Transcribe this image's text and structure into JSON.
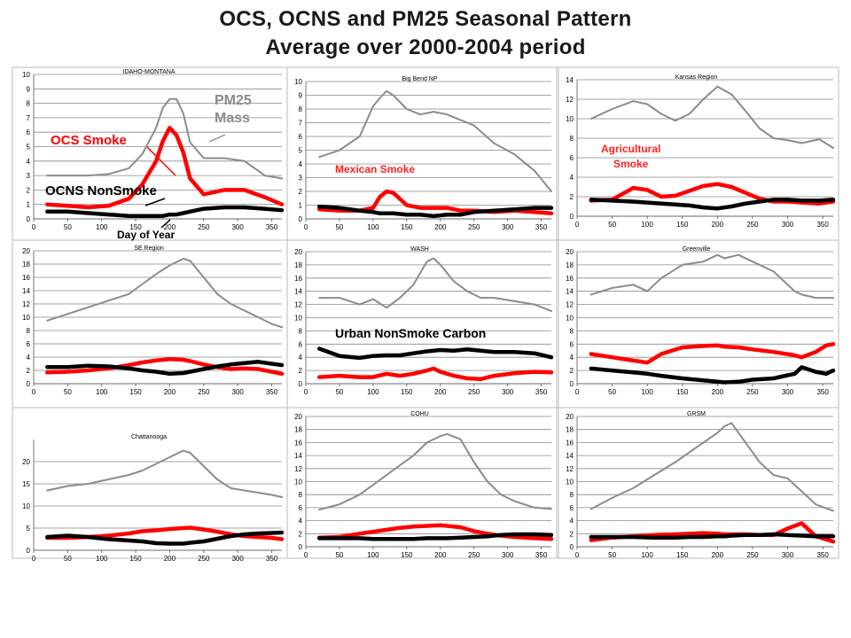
{
  "title_line1": "OCS, OCNS and PM25 Seasonal Pattern",
  "title_line2": "Average over 2000-2004 period",
  "colors": {
    "pm25": "#8c8c8c",
    "ocs": "#ff0000",
    "ocns": "#000000"
  },
  "annotations": {
    "pm25_mass": "PM25\nMass",
    "ocs_smoke": "OCS Smoke",
    "ocns_nonsmoke": "OCNS NonSmoke",
    "day_of_year": "Day of Year",
    "mexican_smoke": "Mexican Smoke",
    "agricultural_smoke": "Agricultural\nSmoke",
    "urban_nonsmoke": "Urban NonSmoke Carbon"
  },
  "chart_data": [
    {
      "type": "line",
      "title": "IDAHO-MONTANA",
      "xlabel": "Day of Year",
      "xlim": [
        0,
        365
      ],
      "ylim": [
        0,
        10
      ],
      "x": [
        20,
        50,
        80,
        110,
        140,
        160,
        180,
        190,
        200,
        210,
        220,
        230,
        250,
        280,
        310,
        340,
        365
      ],
      "series": [
        {
          "name": "PM25 Mass",
          "values": [
            3.0,
            3.0,
            3.0,
            3.1,
            3.5,
            4.5,
            6.3,
            7.7,
            8.3,
            8.3,
            7.3,
            5.3,
            4.2,
            4.2,
            4.0,
            3.0,
            2.8
          ]
        },
        {
          "name": "OCS Smoke",
          "values": [
            1.0,
            0.9,
            0.8,
            0.9,
            1.4,
            2.4,
            4.0,
            5.4,
            6.3,
            5.8,
            4.6,
            2.8,
            1.7,
            2.0,
            2.0,
            1.5,
            1.0
          ]
        },
        {
          "name": "OCNS NonSmoke",
          "values": [
            0.5,
            0.5,
            0.4,
            0.3,
            0.2,
            0.2,
            0.2,
            0.2,
            0.3,
            0.3,
            0.4,
            0.5,
            0.7,
            0.8,
            0.8,
            0.7,
            0.6
          ]
        }
      ]
    },
    {
      "type": "line",
      "title": "Big Bend NP",
      "xlim": [
        0,
        365
      ],
      "ylim": [
        0,
        10
      ],
      "x": [
        20,
        50,
        80,
        100,
        110,
        120,
        130,
        150,
        170,
        190,
        210,
        230,
        250,
        280,
        310,
        340,
        365
      ],
      "series": [
        {
          "name": "",
          "values": [
            4.5,
            5.0,
            6.0,
            8.2,
            8.8,
            9.3,
            9.0,
            8.0,
            7.6,
            7.8,
            7.6,
            7.2,
            6.8,
            5.5,
            4.7,
            3.5,
            2.0
          ]
        },
        {
          "name": "",
          "values": [
            0.7,
            0.6,
            0.6,
            0.8,
            1.6,
            2.0,
            1.9,
            1.0,
            0.8,
            0.8,
            0.8,
            0.6,
            0.6,
            0.5,
            0.6,
            0.5,
            0.4
          ]
        },
        {
          "name": "",
          "values": [
            0.9,
            0.8,
            0.6,
            0.5,
            0.4,
            0.4,
            0.4,
            0.3,
            0.3,
            0.2,
            0.3,
            0.3,
            0.5,
            0.6,
            0.7,
            0.8,
            0.8
          ]
        }
      ]
    },
    {
      "type": "line",
      "title": "Kansas Region",
      "xlim": [
        0,
        365
      ],
      "ylim": [
        0,
        14
      ],
      "x": [
        20,
        50,
        80,
        100,
        120,
        140,
        160,
        180,
        200,
        220,
        240,
        260,
        280,
        300,
        320,
        345,
        365
      ],
      "series": [
        {
          "name": "",
          "values": [
            10.0,
            11.0,
            11.8,
            11.5,
            10.5,
            9.8,
            10.5,
            12.0,
            13.3,
            12.5,
            10.8,
            9.0,
            8.0,
            7.8,
            7.5,
            7.9,
            7.0
          ]
        },
        {
          "name": "",
          "values": [
            1.6,
            1.7,
            2.9,
            2.7,
            2.0,
            2.1,
            2.6,
            3.1,
            3.3,
            3.0,
            2.4,
            1.8,
            1.5,
            1.5,
            1.4,
            1.3,
            1.5
          ]
        },
        {
          "name": "",
          "values": [
            1.7,
            1.6,
            1.5,
            1.4,
            1.3,
            1.2,
            1.1,
            0.9,
            0.8,
            1.0,
            1.3,
            1.5,
            1.7,
            1.7,
            1.6,
            1.6,
            1.7
          ]
        }
      ]
    },
    {
      "type": "line",
      "title": "SE Region",
      "xlim": [
        0,
        365
      ],
      "ylim": [
        0,
        20
      ],
      "x": [
        20,
        50,
        80,
        110,
        140,
        160,
        180,
        200,
        220,
        230,
        250,
        270,
        290,
        310,
        330,
        350,
        365
      ],
      "series": [
        {
          "name": "",
          "values": [
            9.5,
            10.5,
            11.5,
            12.5,
            13.5,
            15.0,
            16.5,
            17.8,
            18.8,
            18.5,
            16.0,
            13.5,
            12.0,
            11.0,
            10.0,
            9.0,
            8.5
          ]
        },
        {
          "name": "",
          "values": [
            1.7,
            1.8,
            2.0,
            2.3,
            2.8,
            3.2,
            3.5,
            3.7,
            3.6,
            3.4,
            2.9,
            2.5,
            2.2,
            2.3,
            2.2,
            1.8,
            1.5
          ]
        },
        {
          "name": "",
          "values": [
            2.5,
            2.5,
            2.7,
            2.6,
            2.3,
            2.0,
            1.8,
            1.5,
            1.6,
            1.8,
            2.2,
            2.6,
            2.9,
            3.1,
            3.3,
            3.0,
            2.8
          ]
        }
      ]
    },
    {
      "type": "line",
      "title": "WASH",
      "xlim": [
        0,
        365
      ],
      "ylim": [
        0,
        20
      ],
      "x": [
        20,
        50,
        80,
        100,
        120,
        140,
        160,
        180,
        190,
        200,
        220,
        240,
        260,
        280,
        310,
        340,
        365
      ],
      "series": [
        {
          "name": "",
          "values": [
            13.0,
            13.0,
            12.0,
            12.8,
            11.5,
            13.0,
            15.0,
            18.5,
            19.0,
            18.0,
            15.5,
            14.0,
            13.0,
            13.0,
            12.5,
            12.0,
            11.0
          ]
        },
        {
          "name": "",
          "values": [
            1.0,
            1.2,
            1.0,
            1.0,
            1.5,
            1.2,
            1.5,
            2.0,
            2.3,
            1.8,
            1.2,
            0.8,
            0.7,
            1.2,
            1.6,
            1.8,
            1.7
          ]
        },
        {
          "name": "",
          "values": [
            5.3,
            4.2,
            3.9,
            4.2,
            4.3,
            4.3,
            4.6,
            4.9,
            5.0,
            5.1,
            5.0,
            5.2,
            5.0,
            4.8,
            4.8,
            4.6,
            4.0
          ]
        }
      ]
    },
    {
      "type": "line",
      "title": "Greenville",
      "xlim": [
        0,
        365
      ],
      "ylim": [
        0,
        20
      ],
      "x": [
        20,
        50,
        80,
        100,
        120,
        150,
        180,
        200,
        210,
        230,
        250,
        280,
        310,
        320,
        340,
        355,
        365
      ],
      "series": [
        {
          "name": "",
          "values": [
            13.5,
            14.5,
            15.0,
            14.0,
            16.0,
            18.0,
            18.5,
            19.5,
            19.0,
            19.5,
            18.5,
            17.0,
            14.0,
            13.5,
            13.0,
            13.0,
            13.0
          ]
        },
        {
          "name": "",
          "values": [
            4.5,
            4.0,
            3.5,
            3.2,
            4.5,
            5.5,
            5.7,
            5.8,
            5.6,
            5.5,
            5.2,
            4.8,
            4.3,
            4.0,
            4.8,
            5.8,
            6.0
          ]
        },
        {
          "name": "",
          "values": [
            2.3,
            2.0,
            1.7,
            1.5,
            1.2,
            0.8,
            0.5,
            0.3,
            0.2,
            0.3,
            0.6,
            0.8,
            1.5,
            2.5,
            1.8,
            1.5,
            2.0
          ]
        }
      ]
    },
    {
      "type": "line",
      "title": "Chattanooga",
      "xlim": [
        0,
        365
      ],
      "ylim": [
        0,
        25
      ],
      "x": [
        20,
        50,
        80,
        110,
        140,
        160,
        180,
        200,
        220,
        230,
        250,
        270,
        290,
        310,
        330,
        350,
        365
      ],
      "series": [
        {
          "name": "",
          "values": [
            13.5,
            14.5,
            15.0,
            16.0,
            17.0,
            18.0,
            19.5,
            21.0,
            22.5,
            22.0,
            19.0,
            16.0,
            14.0,
            13.5,
            13.0,
            12.5,
            12.0
          ]
        },
        {
          "name": "",
          "values": [
            2.8,
            2.8,
            3.0,
            3.3,
            3.8,
            4.3,
            4.5,
            4.8,
            5.0,
            5.1,
            4.7,
            4.2,
            3.6,
            3.2,
            3.0,
            2.8,
            2.5
          ]
        },
        {
          "name": "",
          "values": [
            3.0,
            3.3,
            3.0,
            2.5,
            2.2,
            2.0,
            1.6,
            1.5,
            1.5,
            1.7,
            2.0,
            2.6,
            3.2,
            3.6,
            3.8,
            3.9,
            4.0
          ]
        }
      ]
    },
    {
      "type": "line",
      "title": "COHU",
      "xlim": [
        0,
        365
      ],
      "ylim": [
        0,
        20
      ],
      "x": [
        20,
        50,
        80,
        100,
        120,
        140,
        160,
        180,
        200,
        210,
        230,
        250,
        270,
        290,
        310,
        340,
        365
      ],
      "series": [
        {
          "name": "",
          "values": [
            5.7,
            6.5,
            8.0,
            9.5,
            11.0,
            12.5,
            14.0,
            16.0,
            17.0,
            17.3,
            16.5,
            13.0,
            10.0,
            8.0,
            7.0,
            6.0,
            5.8
          ]
        },
        {
          "name": "",
          "values": [
            1.4,
            1.5,
            2.0,
            2.3,
            2.6,
            2.9,
            3.1,
            3.2,
            3.3,
            3.2,
            3.0,
            2.4,
            2.0,
            1.7,
            1.5,
            1.3,
            1.2
          ]
        },
        {
          "name": "",
          "values": [
            1.3,
            1.3,
            1.3,
            1.2,
            1.2,
            1.2,
            1.2,
            1.3,
            1.3,
            1.3,
            1.4,
            1.5,
            1.6,
            1.8,
            1.9,
            1.9,
            1.8
          ]
        }
      ]
    },
    {
      "type": "line",
      "title": "GRSM",
      "xlim": [
        0,
        365
      ],
      "ylim": [
        0,
        20
      ],
      "x": [
        20,
        50,
        80,
        110,
        140,
        160,
        180,
        200,
        210,
        220,
        240,
        260,
        280,
        300,
        320,
        340,
        365
      ],
      "series": [
        {
          "name": "",
          "values": [
            5.8,
            7.5,
            9.0,
            11.0,
            13.0,
            14.5,
            16.0,
            17.5,
            18.5,
            19.0,
            16.0,
            13.0,
            11.0,
            10.5,
            8.5,
            6.5,
            5.5
          ]
        },
        {
          "name": "",
          "values": [
            1.0,
            1.4,
            1.6,
            1.8,
            1.9,
            2.0,
            2.1,
            2.0,
            1.9,
            1.9,
            1.9,
            1.8,
            1.8,
            2.8,
            3.6,
            1.6,
            0.8
          ]
        },
        {
          "name": "",
          "values": [
            1.5,
            1.5,
            1.5,
            1.4,
            1.4,
            1.5,
            1.5,
            1.6,
            1.6,
            1.7,
            1.8,
            1.8,
            1.9,
            1.8,
            1.7,
            1.6,
            1.6
          ]
        }
      ]
    }
  ]
}
